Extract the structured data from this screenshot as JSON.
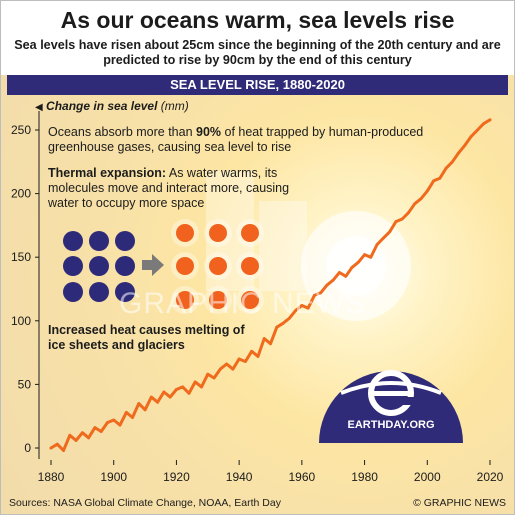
{
  "header": {
    "title": "As our oceans warm, sea levels rise",
    "subtitle": "Sea levels have risen about 25cm since the beginning of the 20th century and are predicted to rise by 90cm by the end of this century"
  },
  "chart_bar_title": "SEA LEVEL RISE, 1880-2020",
  "annotations": {
    "oceans_pre": "Oceans absorb more than ",
    "oceans_pct": "90%",
    "oceans_post": " of heat trapped by human-produced greenhouse gases, causing sea level to rise",
    "thermal_head": "Thermal expansion:",
    "thermal_body": " As water warms, its molecules move and interact more, causing water to occupy more space",
    "ice": "Increased heat causes melting of ice sheets and glaciers"
  },
  "logo": {
    "text": "EARTHDAY.ORG"
  },
  "watermark": "GRAPHIC NEWS",
  "footer": {
    "sources": "Sources: NASA Global Climate Change, NOAA, Earth Day",
    "copyright": "© GRAPHIC NEWS"
  },
  "colors": {
    "line": "#f06a1e",
    "bar": "#302b78",
    "molecule_cool": "#2e2a7a",
    "molecule_warm": "#f0621d",
    "logo": "#302b78"
  },
  "chart_data": {
    "type": "line",
    "title": "SEA LEVEL RISE, 1880-2020",
    "ylabel_bold": "Change in sea level",
    "ylabel_unit": "(mm)",
    "xlabel": "",
    "xlim": [
      1880,
      2020
    ],
    "ylim": [
      0,
      250
    ],
    "xticks": [
      1880,
      1900,
      1920,
      1940,
      1960,
      1980,
      2000,
      2020
    ],
    "yticks": [
      0,
      50,
      100,
      150,
      200,
      250
    ],
    "grid": false,
    "series": [
      {
        "x": [
          1880,
          1882,
          1884,
          1886,
          1888,
          1890,
          1892,
          1894,
          1896,
          1898,
          1900,
          1902,
          1904,
          1906,
          1908,
          1910,
          1912,
          1914,
          1916,
          1918,
          1920,
          1922,
          1924,
          1926,
          1928,
          1930,
          1932,
          1934,
          1936,
          1938,
          1940,
          1942,
          1944,
          1946,
          1948,
          1950,
          1952,
          1954,
          1956,
          1958,
          1960,
          1962,
          1964,
          1966,
          1968,
          1970,
          1972,
          1974,
          1976,
          1978,
          1980,
          1982,
          1984,
          1986,
          1988,
          1990,
          1992,
          1994,
          1996,
          1998,
          2000,
          2002,
          2004,
          2006,
          2008,
          2010,
          2012,
          2014,
          2016,
          2018,
          2020
        ],
        "values": [
          0,
          3,
          -2,
          10,
          6,
          12,
          8,
          16,
          13,
          20,
          22,
          18,
          28,
          24,
          35,
          30,
          40,
          36,
          44,
          40,
          46,
          48,
          43,
          52,
          48,
          58,
          55,
          62,
          66,
          62,
          70,
          68,
          76,
          72,
          86,
          82,
          95,
          98,
          102,
          108,
          112,
          110,
          120,
          122,
          128,
          132,
          138,
          135,
          142,
          146,
          152,
          150,
          160,
          165,
          170,
          178,
          180,
          185,
          192,
          196,
          202,
          210,
          212,
          220,
          225,
          232,
          238,
          245,
          250,
          255,
          258
        ]
      }
    ]
  }
}
